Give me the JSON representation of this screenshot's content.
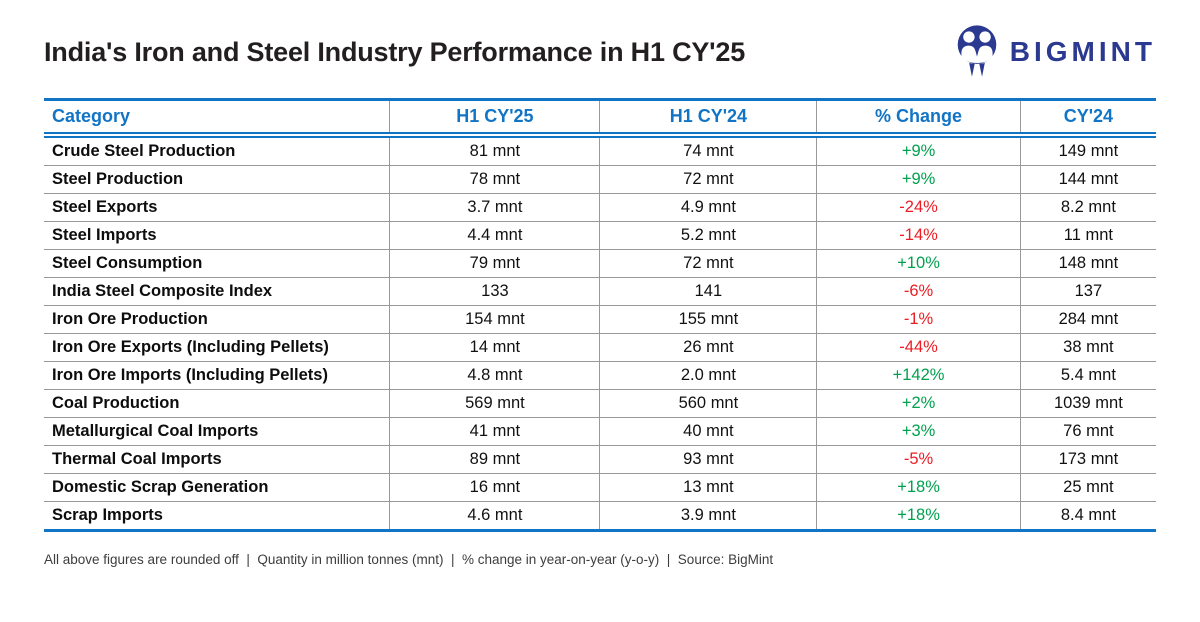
{
  "header": {
    "title": "India's Iron and Steel Industry Performance in H1 CY'25",
    "brand": "BIGMINT"
  },
  "chart_data": {
    "type": "table",
    "title": "India's Iron and Steel Industry Performance in H1 CY'25",
    "columns": [
      "Category",
      "H1 CY'25",
      "H1 CY'24",
      "% Change",
      "CY'24"
    ],
    "rows": [
      [
        "Crude Steel Production",
        "81 mnt",
        "74 mnt",
        "+9%",
        "149 mnt"
      ],
      [
        "Steel Production",
        "78 mnt",
        "72 mnt",
        "+9%",
        "144 mnt"
      ],
      [
        "Steel Exports",
        "3.7 mnt",
        "4.9 mnt",
        "-24%",
        "8.2 mnt"
      ],
      [
        "Steel Imports",
        "4.4 mnt",
        "5.2 mnt",
        "-14%",
        "11 mnt"
      ],
      [
        "Steel Consumption",
        "79 mnt",
        "72 mnt",
        "+10%",
        "148 mnt"
      ],
      [
        "India Steel Composite Index",
        "133",
        "141",
        "-6%",
        "137"
      ],
      [
        "Iron Ore Production",
        "154 mnt",
        "155 mnt",
        "-1%",
        "284 mnt"
      ],
      [
        "Iron Ore Exports (Including Pellets)",
        "14 mnt",
        "26 mnt",
        "-44%",
        "38 mnt"
      ],
      [
        "Iron Ore Imports (Including Pellets)",
        "4.8 mnt",
        "2.0 mnt",
        "+142%",
        "5.4 mnt"
      ],
      [
        "Coal Production",
        "569 mnt",
        "560 mnt",
        "+2%",
        "1039 mnt"
      ],
      [
        "Metallurgical Coal Imports",
        "41 mnt",
        "40 mnt",
        "+3%",
        "76 mnt"
      ],
      [
        "Thermal Coal Imports",
        "89 mnt",
        "93 mnt",
        "-5%",
        "173 mnt"
      ],
      [
        "Domestic Scrap Generation",
        "16 mnt",
        "13 mnt",
        "+18%",
        "25 mnt"
      ],
      [
        "Scrap Imports",
        "4.6 mnt",
        "3.9 mnt",
        "+18%",
        "8.4 mnt"
      ]
    ],
    "column_widths_pct": [
      31.1,
      18.9,
      19.5,
      18.3,
      12.2
    ],
    "legend_position": "none",
    "grid": true
  },
  "footnote": "All above figures are rounded off  |  Quantity in million tonnes (mnt)  |  % change in year-on-year (y-o-y)  |  Source: BigMint",
  "colors": {
    "accent_blue": "#1274c5",
    "logo_navy": "#2b3990",
    "positive_green": "#00a14e",
    "negative_red": "#ec1c24"
  }
}
